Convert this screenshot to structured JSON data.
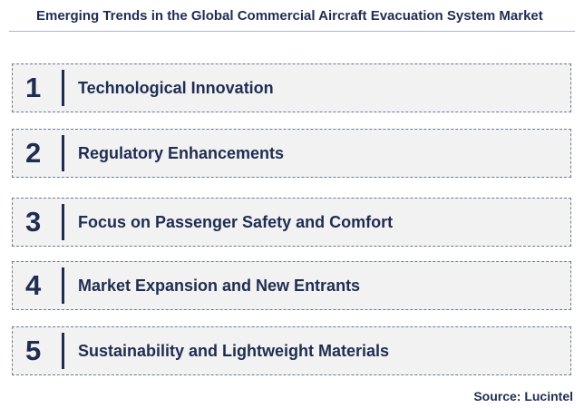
{
  "header": {
    "title": "Emerging Trends in the Global Commercial Aircraft Evacuation System Market"
  },
  "items": [
    {
      "number": "1",
      "label": "Technological Innovation"
    },
    {
      "number": "2",
      "label": "Regulatory Enhancements"
    },
    {
      "number": "3",
      "label": "Focus on Passenger Safety and Comfort"
    },
    {
      "number": "4",
      "label": "Market Expansion and New Entrants"
    },
    {
      "number": "5",
      "label": "Sustainability and Lightweight Materials"
    }
  ],
  "source": "Source: Lucintel"
}
